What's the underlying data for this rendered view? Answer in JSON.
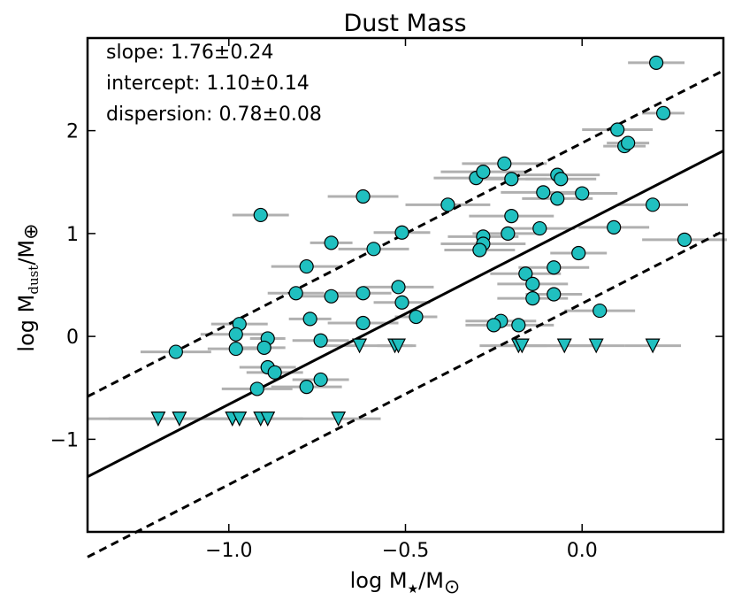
{
  "chart_data": {
    "type": "scatter",
    "title": "Dust Mass",
    "xlabel": "log M★/M⊙",
    "xlabel_main": "log M",
    "xlabel_sub": "★",
    "xlabel_tail": "/M",
    "xlabel_sun": "⊙",
    "ylabel": "log Mdust/M⊕",
    "ylabel_main": "log M",
    "ylabel_sub": "dust",
    "ylabel_tail": "/M",
    "ylabel_earth": "⊕",
    "xlim": [
      -1.4,
      0.4
    ],
    "ylim": [
      -1.9,
      2.9
    ],
    "xticks": [
      -1.0,
      -0.5,
      0.0
    ],
    "xtick_labels": [
      "−1.0",
      "−0.5",
      "0.0"
    ],
    "yticks": [
      -1,
      0,
      1,
      2
    ],
    "ytick_labels": [
      "−1",
      "0",
      "1",
      "2"
    ],
    "annotations": [
      "slope: 1.76±0.24",
      "intercept: 1.10±0.14",
      "dispersion: 0.78±0.08"
    ],
    "fit": {
      "slope": 1.76,
      "intercept": 1.1,
      "dispersion": 0.78
    },
    "colors": {
      "marker": "#20c0c0",
      "errorbar": "#b0b0b0",
      "line": "#000000"
    },
    "detections": [
      [
        -1.15,
        -0.15,
        0.1
      ],
      [
        -0.98,
        -0.12,
        0.08
      ],
      [
        -0.97,
        0.12,
        0.08
      ],
      [
        -0.98,
        0.02,
        0.1
      ],
      [
        -0.89,
        -0.02,
        0.05
      ],
      [
        -0.89,
        -0.3,
        0.08
      ],
      [
        -0.87,
        -0.35,
        0.08
      ],
      [
        -0.92,
        -0.51,
        0.1
      ],
      [
        -0.9,
        -0.11,
        0.06
      ],
      [
        -0.91,
        1.18,
        0.08
      ],
      [
        -0.81,
        0.42,
        0.08
      ],
      [
        -0.78,
        0.68,
        0.1
      ],
      [
        -0.77,
        0.17,
        0.06
      ],
      [
        -0.78,
        -0.49,
        0.1
      ],
      [
        -0.74,
        -0.42,
        0.08
      ],
      [
        -0.74,
        -0.04,
        0.08
      ],
      [
        -0.71,
        0.91,
        0.06
      ],
      [
        -0.71,
        0.39,
        0.1
      ],
      [
        -0.62,
        1.36,
        0.1
      ],
      [
        -0.62,
        0.42,
        0.08
      ],
      [
        -0.62,
        0.13,
        0.1
      ],
      [
        -0.59,
        0.85,
        0.1
      ],
      [
        -0.51,
        1.01,
        0.08
      ],
      [
        -0.52,
        0.48,
        0.1
      ],
      [
        -0.51,
        0.33,
        0.08
      ],
      [
        -0.47,
        0.19,
        0.06
      ],
      [
        -0.38,
        1.28,
        0.12
      ],
      [
        -0.3,
        1.54,
        0.12
      ],
      [
        -0.28,
        1.6,
        0.12
      ],
      [
        -0.28,
        0.97,
        0.1
      ],
      [
        -0.28,
        0.9,
        0.12
      ],
      [
        -0.29,
        0.84,
        0.1
      ],
      [
        -0.22,
        1.68,
        0.12
      ],
      [
        -0.2,
        1.53,
        0.1
      ],
      [
        -0.2,
        1.17,
        0.12
      ],
      [
        -0.21,
        1.0,
        0.1
      ],
      [
        -0.23,
        0.15,
        0.1
      ],
      [
        -0.25,
        0.11,
        0.08
      ],
      [
        -0.18,
        0.11,
        0.1
      ],
      [
        -0.16,
        0.61,
        0.1
      ],
      [
        -0.12,
        1.05,
        0.1
      ],
      [
        -0.11,
        1.4,
        0.12
      ],
      [
        -0.07,
        1.57,
        0.12
      ],
      [
        -0.06,
        1.53,
        0.1
      ],
      [
        -0.07,
        1.34,
        0.1
      ],
      [
        -0.08,
        0.67,
        0.1
      ],
      [
        -0.08,
        0.41,
        0.08
      ],
      [
        -0.14,
        0.51,
        0.1
      ],
      [
        -0.14,
        0.37,
        0.1
      ],
      [
        0.0,
        1.39,
        0.1
      ],
      [
        -0.01,
        0.81,
        0.08
      ],
      [
        0.05,
        0.25,
        0.1
      ],
      [
        0.1,
        2.01,
        0.1
      ],
      [
        0.12,
        1.85,
        0.06
      ],
      [
        0.13,
        1.88,
        0.06
      ],
      [
        0.09,
        1.06,
        0.1
      ],
      [
        0.2,
        1.28,
        0.1
      ],
      [
        0.21,
        2.66,
        0.08
      ],
      [
        0.23,
        2.17,
        0.06
      ],
      [
        0.29,
        0.94,
        0.12
      ]
    ],
    "upper_limits": [
      [
        -1.2,
        -0.8,
        0.2
      ],
      [
        -1.14,
        -0.8,
        0.2
      ],
      [
        -0.99,
        -0.8,
        0.1
      ],
      [
        -0.97,
        -0.8,
        0.1
      ],
      [
        -0.91,
        -0.8,
        0.1
      ],
      [
        -0.89,
        -0.8,
        0.1
      ],
      [
        -0.69,
        -0.8,
        0.12
      ],
      [
        -0.63,
        -0.09,
        0.12
      ],
      [
        -0.53,
        -0.09,
        0.05
      ],
      [
        -0.52,
        -0.09,
        0.05
      ],
      [
        -0.18,
        -0.09,
        0.08
      ],
      [
        -0.17,
        -0.09,
        0.12
      ],
      [
        -0.05,
        -0.09,
        0.1
      ],
      [
        0.04,
        -0.09,
        0.08
      ],
      [
        0.2,
        -0.09,
        0.08
      ]
    ]
  }
}
